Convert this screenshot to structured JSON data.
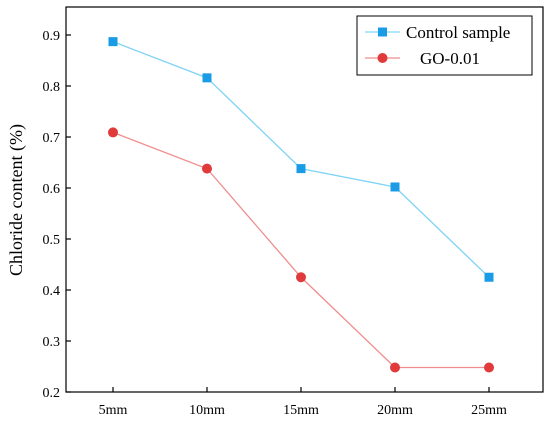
{
  "chart_data": {
    "type": "line",
    "categories": [
      "5mm",
      "10mm",
      "15mm",
      "20mm",
      "25mm"
    ],
    "xlabel": "",
    "ylabel": "Chloride content (%)",
    "ylim": [
      0.2,
      0.95
    ],
    "yticks": [
      0.2,
      0.3,
      0.4,
      0.5,
      0.6,
      0.7,
      0.8,
      0.9
    ],
    "grid": false,
    "legend_position": "top-right",
    "series": [
      {
        "name": "Control sample",
        "marker": "square",
        "color": "#1a9be6",
        "line_color": "#7fd3f5",
        "values": [
          0.887,
          0.816,
          0.638,
          0.602,
          0.425
        ]
      },
      {
        "name": "GO-0.01",
        "marker": "circle",
        "color": "#e03a3a",
        "line_color": "#f08c8c",
        "values": [
          0.709,
          0.638,
          0.425,
          0.248,
          0.248
        ]
      }
    ]
  }
}
